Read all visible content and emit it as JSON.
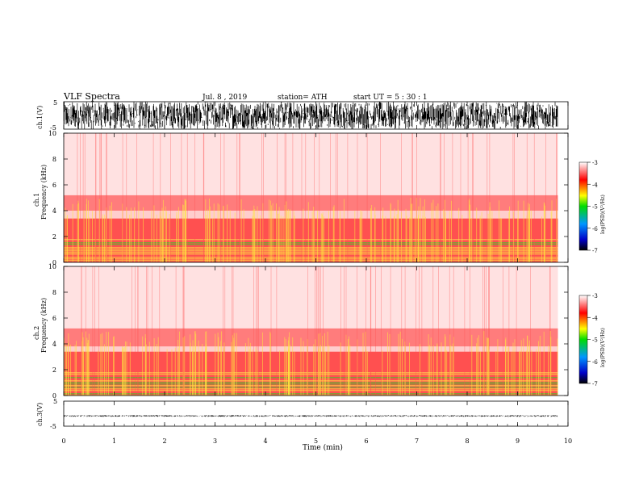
{
  "header": {
    "title": "VLF  Spectra",
    "date": "Jul.  8  , 2019",
    "station": "station= ATH",
    "start": "start  UT  =    5  : 30 : 1"
  },
  "chart_data": [
    {
      "type": "line",
      "panel": "ch1-waveform",
      "ylabel": "ch.1(V)",
      "yticks": [
        "5",
        "-5"
      ],
      "ylim": [
        -5,
        5
      ],
      "xlim": [
        0,
        10
      ],
      "series": [
        {
          "color": "#000000",
          "amplitude_range": [
            -5,
            5
          ],
          "x_end": 9.8
        }
      ]
    },
    {
      "type": "heatmap",
      "panel": "ch1-spectrogram",
      "ylabel_line1": "ch.1",
      "ylabel_line2": "Frequency  (kHz)",
      "yticks": [
        "0",
        "2",
        "4",
        "6",
        "8",
        "10"
      ],
      "ylim": [
        0,
        10
      ],
      "xlim": [
        0,
        10
      ],
      "x_end": 9.8,
      "bands_khz": [
        {
          "from": 0,
          "to": 1.8,
          "level": "mixed-yellow-green"
        },
        {
          "from": 1.8,
          "to": 3.4,
          "level": "red-dense"
        },
        {
          "from": 3.4,
          "to": 4.0,
          "level": "pink"
        },
        {
          "from": 4.0,
          "to": 5.2,
          "level": "red-light"
        },
        {
          "from": 5.2,
          "to": 10.0,
          "level": "pink-sparse"
        }
      ],
      "colorbar": {
        "label": "log(PSD)(V²/Hz)",
        "ticks": [
          "-3",
          "-4",
          "-5",
          "-6",
          "-7"
        ],
        "range": [
          -7,
          -3
        ]
      }
    },
    {
      "type": "heatmap",
      "panel": "ch2-spectrogram",
      "ylabel_line1": "ch.2",
      "ylabel_line2": "Frequency  (kHz)",
      "yticks": [
        "0",
        "2",
        "4",
        "6",
        "8",
        "10"
      ],
      "ylim": [
        0,
        10
      ],
      "xlim": [
        0,
        10
      ],
      "x_end": 9.8,
      "bands_khz": [
        {
          "from": 0,
          "to": 1.8,
          "level": "mixed-yellow-green"
        },
        {
          "from": 1.8,
          "to": 3.4,
          "level": "red-dense"
        },
        {
          "from": 3.4,
          "to": 3.8,
          "level": "pink"
        },
        {
          "from": 3.8,
          "to": 5.2,
          "level": "red-light"
        },
        {
          "from": 5.2,
          "to": 10.0,
          "level": "pink-sparse"
        }
      ],
      "colorbar": {
        "label": "log(PSD)(V²/Hz)",
        "ticks": [
          "-3",
          "-4",
          "-5",
          "-6",
          "-7"
        ],
        "range": [
          -7,
          -3
        ]
      }
    },
    {
      "type": "line",
      "panel": "ch3-waveform",
      "ylabel": "ch.3(V)",
      "yticks": [
        "5",
        "-5"
      ],
      "ylim": [
        -5,
        5
      ],
      "xlim": [
        0,
        10
      ],
      "xlabel": "Time  (min)",
      "xticks": [
        "0",
        "1",
        "2",
        "3",
        "4",
        "5",
        "6",
        "7",
        "8",
        "9",
        "10"
      ],
      "series": [
        {
          "color": "#000000",
          "amplitude_range": [
            -1.2,
            -0.6
          ],
          "x_end": 9.8
        }
      ]
    }
  ],
  "colors": {
    "spectrum_low": "#ff5050",
    "spectrum_mid": "#ffe640",
    "spectrum_high": "#28d228",
    "pink": "#ffc8c8",
    "colorbar_stops": [
      "#000000",
      "#0000c8",
      "#0096ff",
      "#00dc00",
      "#ffff00",
      "#ff0000",
      "#ffffff"
    ]
  }
}
